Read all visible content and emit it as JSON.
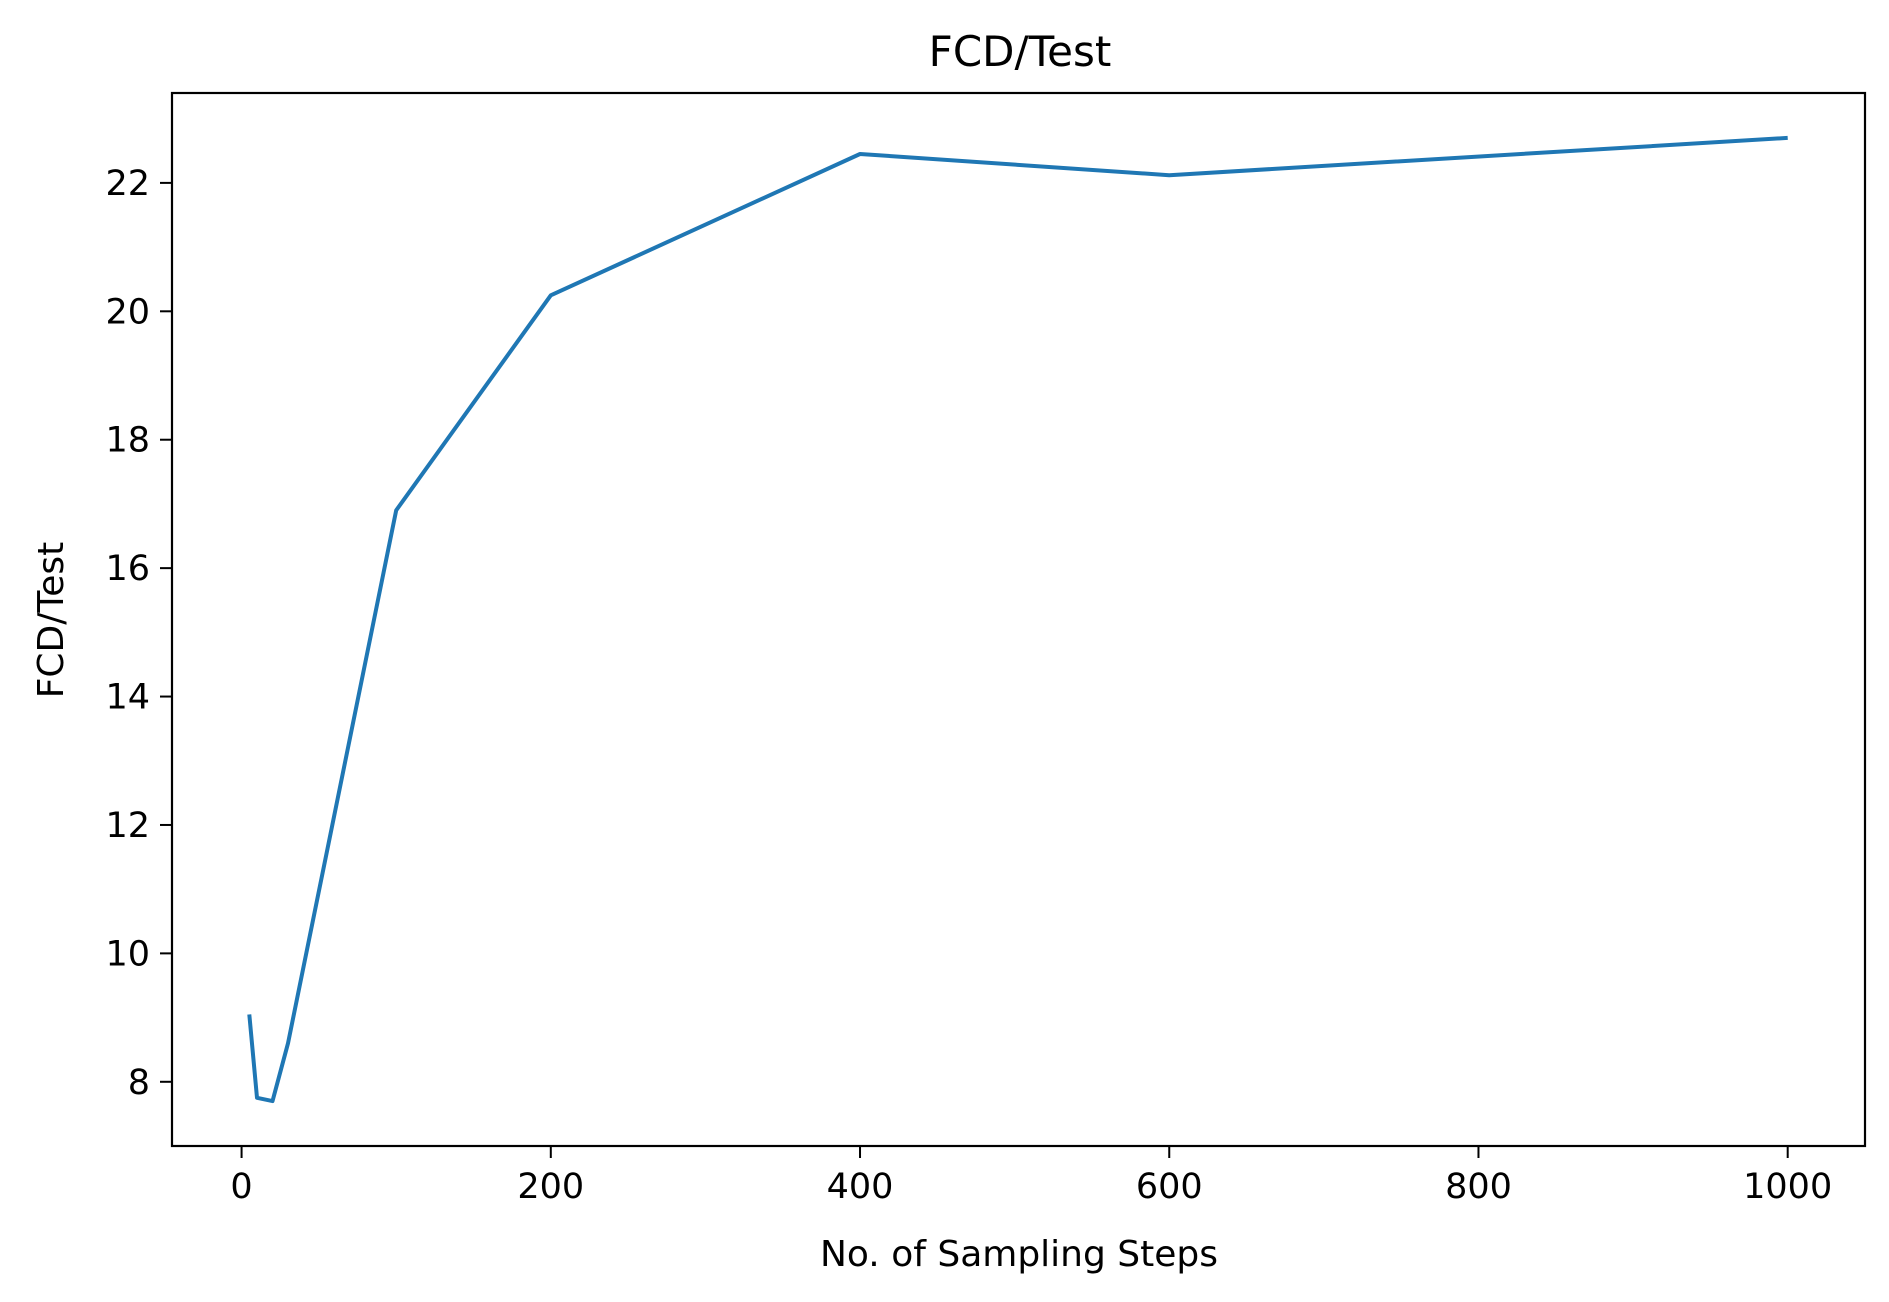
{
  "chart_data": {
    "type": "line",
    "title": "FCD/Test",
    "xlabel": "No. of Sampling Steps",
    "ylabel": "FCD/Test",
    "xlim": [
      -45,
      1050
    ],
    "ylim": [
      7.0,
      23.4
    ],
    "xticks": [
      0,
      200,
      400,
      600,
      800,
      1000
    ],
    "xtick_labels": [
      "0",
      "200",
      "400",
      "600",
      "800",
      "1000"
    ],
    "yticks": [
      8,
      10,
      12,
      14,
      16,
      18,
      20,
      22
    ],
    "ytick_labels": [
      "8",
      "10",
      "12",
      "14",
      "16",
      "18",
      "20",
      "22"
    ],
    "grid": false,
    "legend": "none",
    "series": [
      {
        "color": "#1f77b4",
        "x": [
          5,
          10,
          20,
          30,
          100,
          200,
          400,
          600,
          1000
        ],
        "y": [
          9.05,
          7.75,
          7.7,
          8.6,
          16.9,
          20.25,
          22.45,
          22.12,
          22.7
        ]
      }
    ]
  }
}
